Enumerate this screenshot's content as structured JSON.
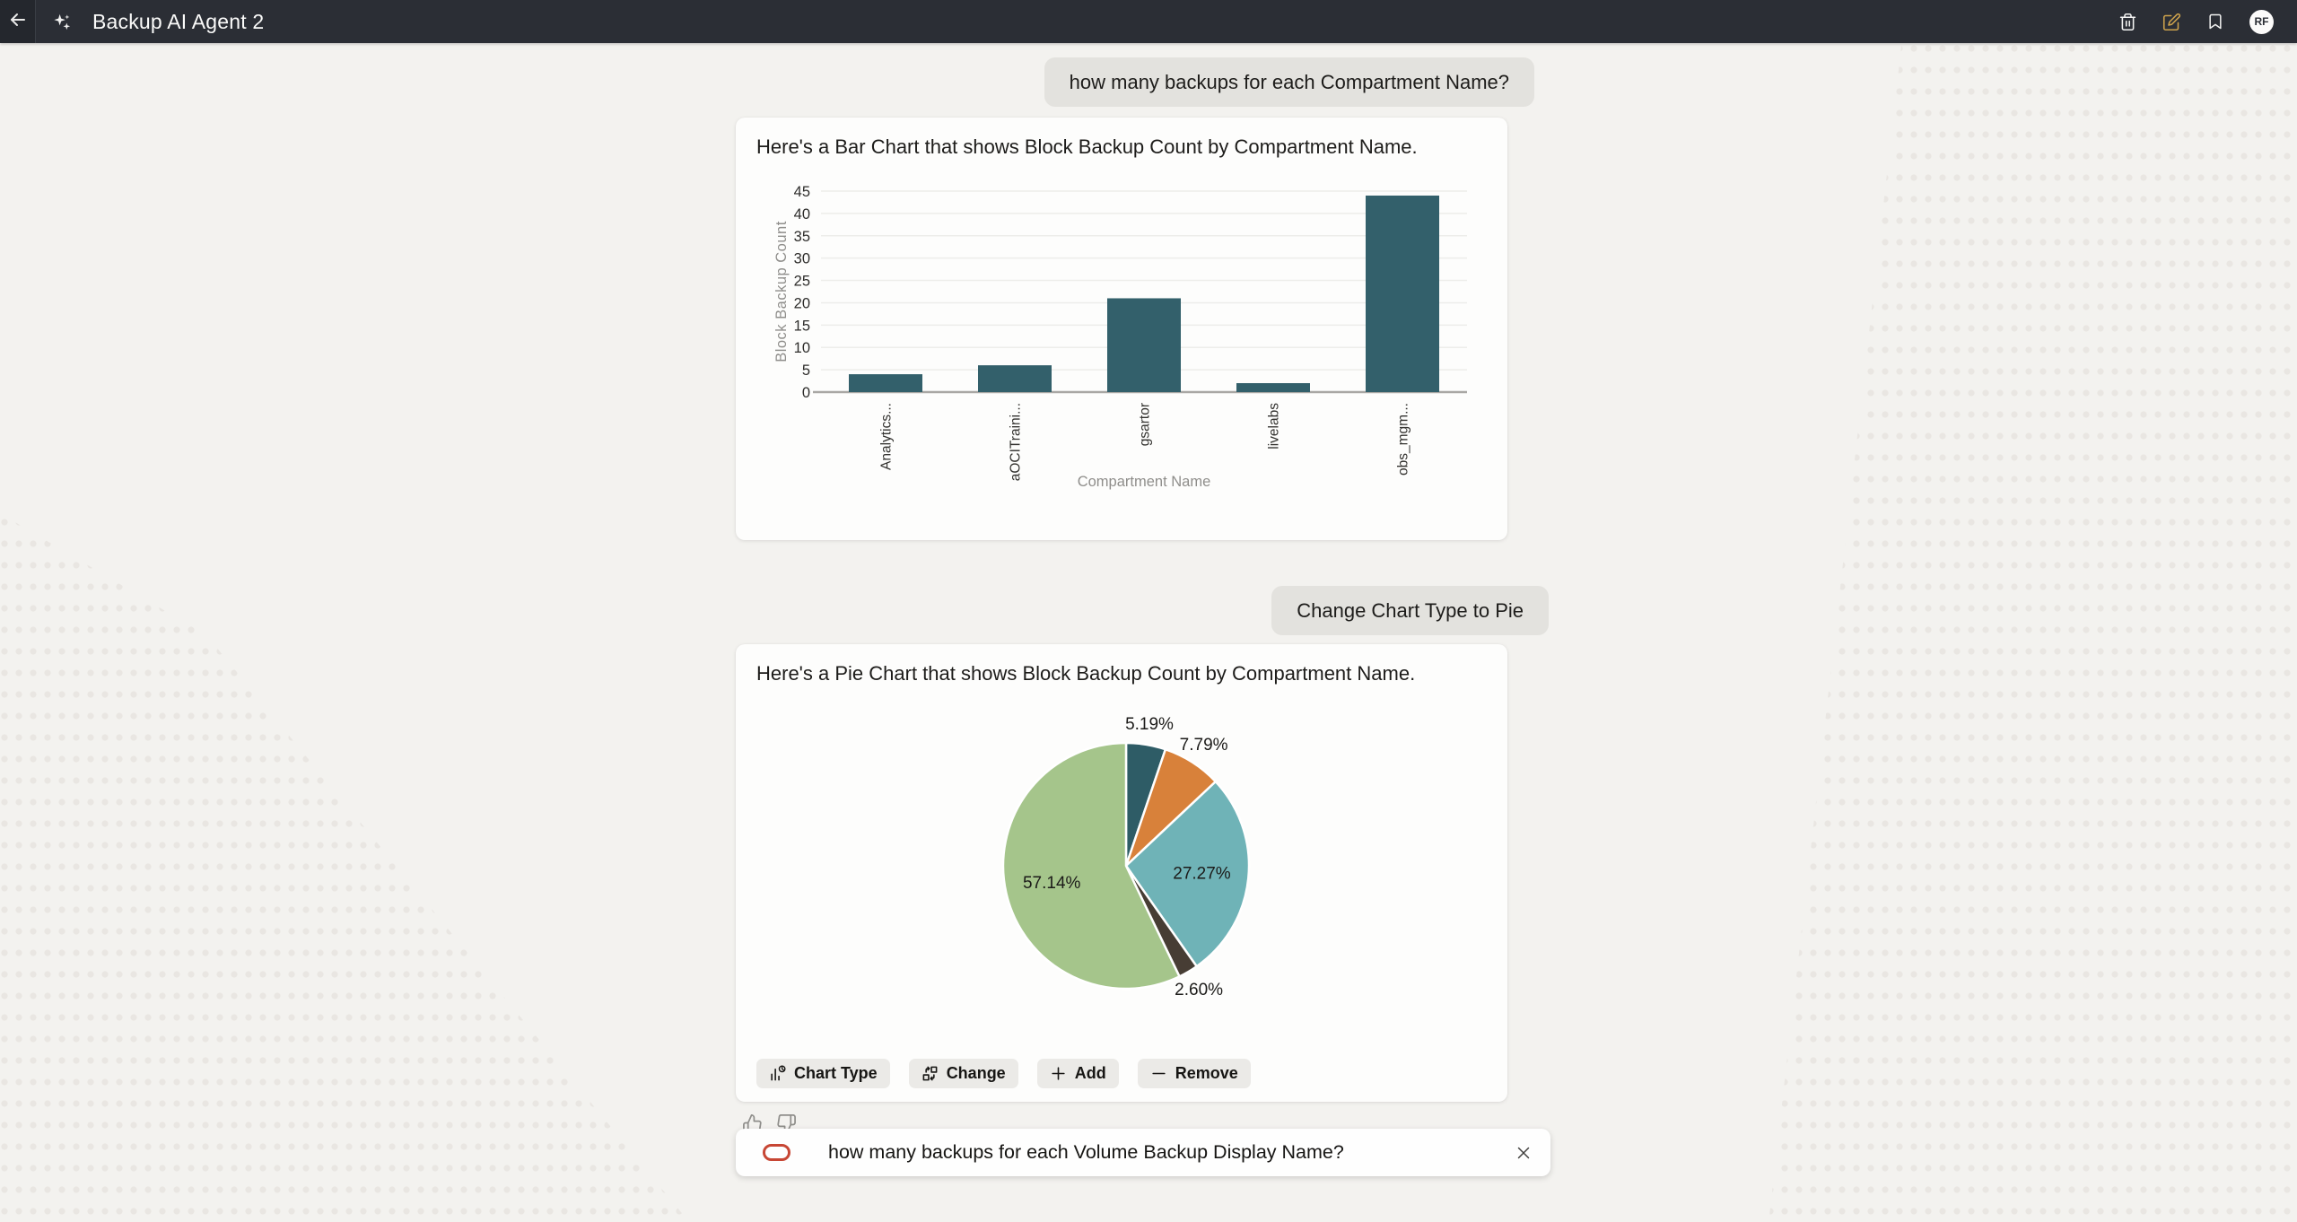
{
  "header": {
    "title": "Backup AI Agent 2",
    "avatar_initials": "RF",
    "icons": [
      "back-arrow",
      "ai-sparkle",
      "trash",
      "edit",
      "bookmark",
      "avatar"
    ]
  },
  "colors": {
    "header_bg": "#2b2e35",
    "page_bg": "#f3f2ef",
    "card_bg": "#fdfdfc",
    "bubble_bg": "#e3e2de",
    "bar_color": "#33606b",
    "edit_icon_accent": "#cda24c",
    "oracle_red": "#c74634"
  },
  "messages": {
    "user_message_1": "how many backups for each Compartment Name?",
    "bar_card_title": "Here's a Bar Chart that shows Block Backup Count by Compartment Name.",
    "user_message_2": "Change Chart Type to Pie",
    "pie_card_title": "Here's a Pie Chart that shows Block Backup Count by Compartment Name."
  },
  "chart_data": [
    {
      "type": "bar",
      "categories": [
        "Analytics...",
        "aOCITraini...",
        "gsartor",
        "livelabs",
        "obs_mgm..."
      ],
      "values": [
        4,
        6,
        21,
        2,
        44
      ],
      "xlabel": "Compartment Name",
      "ylabel": "Block Backup Count",
      "ylim": [
        0,
        45
      ],
      "ytick_step": 5,
      "grid": true,
      "legend": "none",
      "bar_color": "#33606b"
    },
    {
      "type": "pie",
      "slices": [
        {
          "label": "5.19%",
          "value": 5.19,
          "color": "#2e5c66"
        },
        {
          "label": "7.79%",
          "value": 7.79,
          "color": "#d8813a"
        },
        {
          "label": "27.27%",
          "value": 27.27,
          "color": "#6fb3b7"
        },
        {
          "label": "2.60%",
          "value": 2.6,
          "color": "#473d34"
        },
        {
          "label": "57.14%",
          "value": 57.14,
          "color": "#a5c58b"
        }
      ],
      "start_angle_deg": 0,
      "direction": "clockwise",
      "label_inside_threshold_pct": 20,
      "legend": "none"
    }
  ],
  "chart_actions": [
    {
      "label": "Chart Type",
      "icon": "chart-type-icon"
    },
    {
      "label": "Change",
      "icon": "change-icon"
    },
    {
      "label": "Add",
      "icon": "add-icon"
    },
    {
      "label": "Remove",
      "icon": "remove-icon"
    }
  ],
  "feedback": {
    "icons": [
      "thumbs-up",
      "thumbs-down"
    ]
  },
  "composer": {
    "value": "how many backups for each Volume Backup Display Name?"
  }
}
